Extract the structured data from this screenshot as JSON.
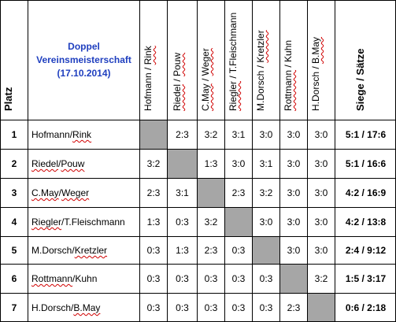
{
  "title_lines": [
    "Doppel",
    "Vereinsmeisterschaft",
    "(17.10.2014)"
  ],
  "platz_header": "Platz",
  "score_header": "Siege / Sätze",
  "colors": {
    "title": "#1f3fbf",
    "diagonal": "#a6a6a6",
    "spellcheck": "#d00000"
  },
  "column_headers": [
    {
      "a": "Hofmann",
      "sep": " / ",
      "b": "Rink",
      "sq_a": false,
      "sq_b": true
    },
    {
      "a": "Riedel",
      "sep": " / ",
      "b": "Pouw",
      "sq_a": true,
      "sq_b": true
    },
    {
      "a": "C.May",
      "sep": " / ",
      "b": "Weger",
      "sq_a": true,
      "sq_b": true
    },
    {
      "a": "Riegler",
      "sep": " / ",
      "b": "T.Fleischmann",
      "sq_a": true,
      "sq_b": false
    },
    {
      "a": "M.Dorsch",
      "sep": " / ",
      "b": "Kretzler",
      "sq_a": false,
      "sq_b": true
    },
    {
      "a": "Rottmann",
      "sep": " / ",
      "b": "Kuhn",
      "sq_a": true,
      "sq_b": false
    },
    {
      "a": "H.Dorsch",
      "sep": " / ",
      "b": "B.May",
      "sq_a": false,
      "sq_b": true
    }
  ],
  "rows": [
    {
      "platz": "1",
      "a": "Hofmann",
      "sep": " / ",
      "b": "Rink",
      "sq_a": false,
      "sq_b": true,
      "results": [
        "",
        "2:3",
        "3:2",
        "3:1",
        "3:0",
        "3:0",
        "3:0"
      ],
      "score": "5:1 / 17:6"
    },
    {
      "platz": "2",
      "a": "Riedel",
      "sep": " / ",
      "b": "Pouw",
      "sq_a": true,
      "sq_b": true,
      "results": [
        "3:2",
        "",
        "1:3",
        "3:0",
        "3:1",
        "3:0",
        "3:0"
      ],
      "score": "5:1 / 16:6"
    },
    {
      "platz": "3",
      "a": "C.May",
      "sep": " / ",
      "b": "Weger",
      "sq_a": true,
      "sq_b": true,
      "results": [
        "2:3",
        "3:1",
        "",
        "2:3",
        "3:2",
        "3:0",
        "3:0"
      ],
      "score": "4:2 / 16:9"
    },
    {
      "platz": "4",
      "a": "Riegler",
      "sep": " / ",
      "b": "T.Fleischmann",
      "sq_a": true,
      "sq_b": false,
      "results": [
        "1:3",
        "0:3",
        "3:2",
        "",
        "3:0",
        "3:0",
        "3:0"
      ],
      "score": "4:2 / 13:8"
    },
    {
      "platz": "5",
      "a": "M.Dorsch",
      "sep": " / ",
      "b": "Kretzler",
      "sq_a": false,
      "sq_b": true,
      "results": [
        "0:3",
        "1:3",
        "2:3",
        "0:3",
        "",
        "3:0",
        "3:0"
      ],
      "score": "2:4 / 9:12"
    },
    {
      "platz": "6",
      "a": "Rottmann",
      "sep": " / ",
      "b": "Kuhn",
      "sq_a": true,
      "sq_b": false,
      "results": [
        "0:3",
        "0:3",
        "0:3",
        "0:3",
        "0:3",
        "",
        "3:2"
      ],
      "score": "1:5 / 3:17"
    },
    {
      "platz": "7",
      "a": "H.Dorsch",
      "sep": " / ",
      "b": "B.May",
      "sq_a": false,
      "sq_b": true,
      "results": [
        "0:3",
        "0:3",
        "0:3",
        "0:3",
        "0:3",
        "2:3",
        ""
      ],
      "score": "0:6 / 2:18"
    }
  ]
}
